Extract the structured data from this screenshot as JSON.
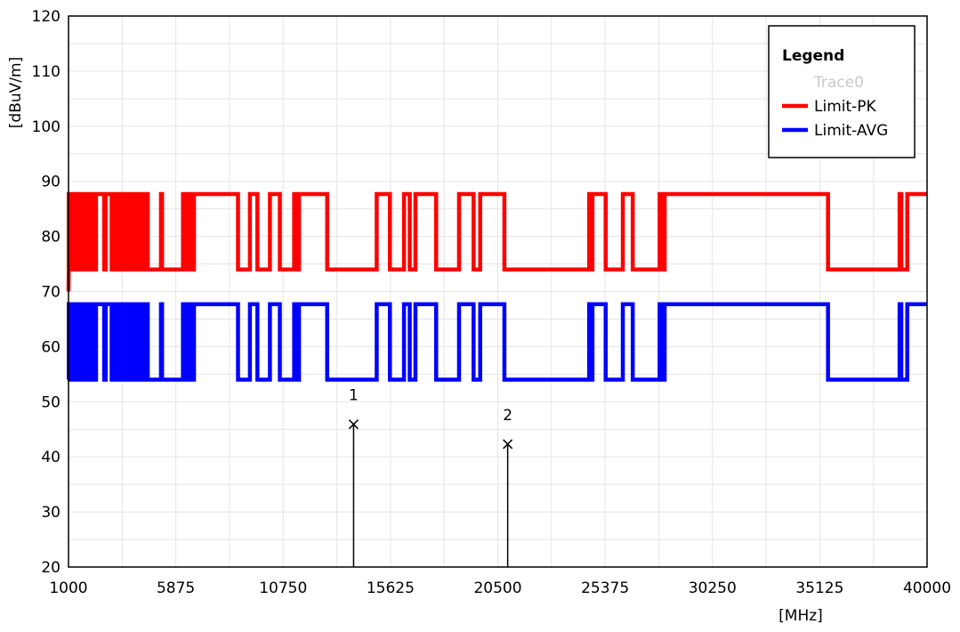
{
  "chart_data": {
    "type": "line",
    "xlabel": "[MHz]",
    "ylabel": "[dBuV/m]",
    "xlim": [
      1000,
      40000
    ],
    "ylim": [
      20,
      120
    ],
    "x_ticks": [
      "1000",
      "5875",
      "10750",
      "15625",
      "20500",
      "25375",
      "30250",
      "35125",
      "40000"
    ],
    "y_ticks": [
      "20",
      "30",
      "40",
      "50",
      "60",
      "70",
      "80",
      "90",
      "100",
      "110",
      "120"
    ],
    "grid": true,
    "legend": {
      "title": "Legend",
      "position": "top-right",
      "entries": [
        {
          "name": "Trace0",
          "color": "#c8c8c8",
          "swatch": false
        },
        {
          "name": "Limit-PK",
          "color": "#ff0000",
          "swatch": true
        },
        {
          "name": "Limit-AVG",
          "color": "#0000ff",
          "swatch": true
        }
      ]
    },
    "series": [
      {
        "name": "Limit-PK",
        "color": "#ff0000",
        "high": 87.7,
        "low": 74.0,
        "start": 70.0,
        "high_intervals": [
          [
            1010,
            1050
          ],
          [
            1090,
            1120
          ],
          [
            1170,
            1200
          ],
          [
            1250,
            1290
          ],
          [
            1340,
            1380
          ],
          [
            1430,
            1470
          ],
          [
            1520,
            1560
          ],
          [
            1600,
            1640
          ],
          [
            1680,
            1720
          ],
          [
            1760,
            1800
          ],
          [
            1850,
            1880
          ],
          [
            1930,
            1960
          ],
          [
            2000,
            2040
          ],
          [
            2080,
            2120
          ],
          [
            2160,
            2200
          ],
          [
            2250,
            2620
          ],
          [
            2690,
            2960
          ],
          [
            3030,
            3080
          ],
          [
            3130,
            3300
          ],
          [
            3370,
            3420
          ],
          [
            3480,
            3540
          ],
          [
            3600,
            3660
          ],
          [
            3720,
            3770
          ],
          [
            3830,
            3880
          ],
          [
            3950,
            4050
          ],
          [
            4150,
            4200
          ],
          [
            4250,
            4300
          ],
          [
            4360,
            4400
          ],
          [
            4450,
            4500
          ],
          [
            4560,
            4600
          ],
          [
            5200,
            5250
          ],
          [
            6200,
            6260
          ],
          [
            6350,
            6450
          ],
          [
            6530,
            6600
          ],
          [
            6700,
            8700
          ],
          [
            9240,
            9580
          ],
          [
            10150,
            10600
          ],
          [
            11250,
            11350
          ],
          [
            11470,
            12750
          ],
          [
            15000,
            15600
          ],
          [
            16240,
            16500
          ],
          [
            16760,
            17700
          ],
          [
            18740,
            19400
          ],
          [
            19700,
            20800
          ],
          [
            24650,
            24720
          ],
          [
            24800,
            25400
          ],
          [
            26180,
            26630
          ],
          [
            27850,
            27950
          ],
          [
            28080,
            35500
          ],
          [
            38750,
            38830
          ],
          [
            39100,
            40000
          ]
        ]
      },
      {
        "name": "Limit-AVG",
        "color": "#0000ff",
        "high": 67.7,
        "low": 54.0,
        "start": 54.0,
        "high_intervals": [
          [
            1010,
            1050
          ],
          [
            1090,
            1120
          ],
          [
            1170,
            1200
          ],
          [
            1250,
            1290
          ],
          [
            1340,
            1380
          ],
          [
            1430,
            1470
          ],
          [
            1520,
            1560
          ],
          [
            1600,
            1640
          ],
          [
            1680,
            1720
          ],
          [
            1760,
            1800
          ],
          [
            1850,
            1880
          ],
          [
            1930,
            1960
          ],
          [
            2000,
            2040
          ],
          [
            2080,
            2120
          ],
          [
            2160,
            2200
          ],
          [
            2250,
            2620
          ],
          [
            2690,
            2960
          ],
          [
            3030,
            3080
          ],
          [
            3130,
            3300
          ],
          [
            3370,
            3420
          ],
          [
            3480,
            3540
          ],
          [
            3600,
            3660
          ],
          [
            3720,
            3770
          ],
          [
            3830,
            3880
          ],
          [
            3950,
            4050
          ],
          [
            4150,
            4200
          ],
          [
            4250,
            4300
          ],
          [
            4360,
            4400
          ],
          [
            4450,
            4500
          ],
          [
            4560,
            4600
          ],
          [
            5200,
            5250
          ],
          [
            6200,
            6260
          ],
          [
            6350,
            6450
          ],
          [
            6530,
            6600
          ],
          [
            6700,
            8700
          ],
          [
            9240,
            9580
          ],
          [
            10150,
            10600
          ],
          [
            11250,
            11350
          ],
          [
            11470,
            12750
          ],
          [
            15000,
            15600
          ],
          [
            16240,
            16500
          ],
          [
            16760,
            17700
          ],
          [
            18740,
            19400
          ],
          [
            19700,
            20800
          ],
          [
            24650,
            24720
          ],
          [
            24800,
            25400
          ],
          [
            26180,
            26630
          ],
          [
            27850,
            27950
          ],
          [
            28080,
            35500
          ],
          [
            38750,
            38830
          ],
          [
            39100,
            40000
          ]
        ]
      }
    ],
    "markers": [
      {
        "label": "1",
        "x": 13950,
        "y": 45.9
      },
      {
        "label": "2",
        "x": 20950,
        "y": 42.3
      }
    ]
  }
}
